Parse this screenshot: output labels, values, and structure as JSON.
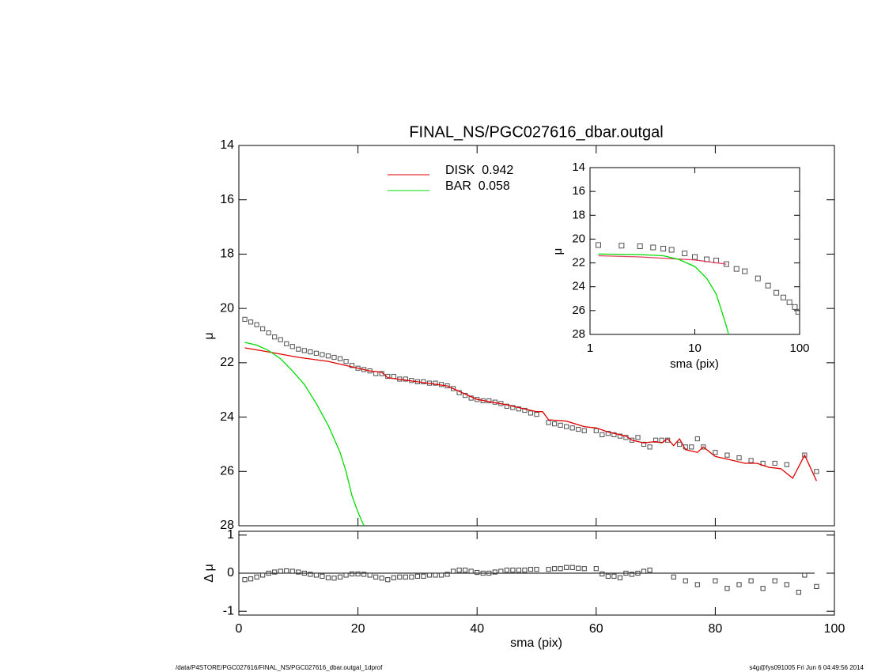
{
  "chart_data": [
    {
      "type": "line",
      "title": "FINAL_NS/PGC027616_dbar.outgal",
      "ylabel": "μ",
      "xlim": [
        0,
        100
      ],
      "xticks": [
        0,
        20,
        40,
        60,
        80,
        100
      ],
      "ylim": [
        14,
        28
      ],
      "y_reversed": true,
      "yticks": [
        14,
        16,
        18,
        20,
        22,
        24,
        26,
        28
      ],
      "legend": "top-center",
      "series": [
        {
          "color": "#505050",
          "style": "square",
          "x": [
            1,
            2,
            3,
            4,
            5,
            6,
            7,
            8,
            9,
            10,
            11,
            12,
            13,
            14,
            15,
            16,
            17,
            18,
            19,
            20,
            21,
            22,
            23,
            24,
            25,
            26,
            27,
            28,
            29,
            30,
            31,
            32,
            33,
            34,
            35,
            36,
            37,
            38,
            39,
            40,
            41,
            42,
            43,
            44,
            45,
            46,
            47,
            48,
            49,
            50,
            52,
            53,
            54,
            55,
            56,
            57,
            58,
            60,
            61,
            62,
            63,
            64,
            65,
            66,
            67,
            68,
            69,
            70,
            71,
            72,
            74,
            75,
            76,
            77,
            78,
            80,
            82,
            84,
            86,
            88,
            90,
            92,
            95,
            97
          ],
          "values": [
            20.4,
            20.5,
            20.6,
            20.75,
            20.9,
            21.05,
            21.15,
            21.3,
            21.4,
            21.5,
            21.55,
            21.6,
            21.65,
            21.7,
            21.75,
            21.8,
            21.85,
            21.95,
            22.1,
            22.2,
            22.25,
            22.3,
            22.4,
            22.4,
            22.5,
            22.5,
            22.6,
            22.6,
            22.65,
            22.7,
            22.7,
            22.75,
            22.75,
            22.8,
            22.85,
            22.95,
            23.1,
            23.2,
            23.3,
            23.35,
            23.4,
            23.4,
            23.45,
            23.5,
            23.6,
            23.65,
            23.7,
            23.75,
            23.85,
            23.9,
            24.2,
            24.25,
            24.3,
            24.35,
            24.4,
            24.45,
            24.5,
            24.5,
            24.65,
            24.6,
            24.65,
            24.7,
            24.75,
            24.85,
            24.75,
            25.0,
            25.1,
            24.85,
            24.85,
            24.85,
            25.0,
            25.1,
            25.1,
            24.8,
            25.1,
            25.3,
            25.4,
            25.5,
            25.6,
            25.7,
            25.7,
            25.75,
            25.4,
            26.0
          ]
        },
        {
          "name": "DISK  0.942",
          "color": "#e00000",
          "style": "line",
          "x": [
            1,
            5,
            10,
            15,
            20,
            22,
            24,
            25,
            30,
            35,
            40,
            45,
            50,
            51,
            52,
            55,
            58,
            60,
            62,
            65,
            66,
            68,
            70,
            71,
            72,
            73,
            74,
            75,
            77,
            78,
            80,
            82,
            85,
            87,
            89,
            91,
            93,
            95,
            97
          ],
          "values": [
            21.45,
            21.6,
            21.8,
            21.95,
            22.2,
            22.3,
            22.35,
            22.55,
            22.7,
            22.85,
            23.35,
            23.55,
            23.8,
            23.8,
            24.1,
            24.15,
            24.35,
            24.4,
            24.55,
            24.7,
            24.85,
            24.95,
            24.9,
            24.95,
            24.8,
            25.05,
            24.8,
            25.2,
            25.3,
            25.1,
            25.45,
            25.55,
            25.7,
            25.7,
            25.85,
            25.9,
            26.25,
            25.4,
            26.35
          ]
        },
        {
          "name": "BAR  0.058",
          "color": "#00dd00",
          "style": "line",
          "x": [
            1,
            3,
            5,
            7,
            9,
            11,
            13,
            15,
            16,
            17,
            18,
            19,
            20,
            21
          ],
          "values": [
            21.25,
            21.35,
            21.55,
            21.85,
            22.3,
            22.8,
            23.5,
            24.3,
            24.8,
            25.3,
            26.0,
            26.9,
            27.5,
            28.0
          ]
        }
      ]
    },
    {
      "type": "scatter",
      "xlabel": "sma (pix)",
      "ylabel": "Δ μ",
      "xlim": [
        0,
        100
      ],
      "xticks": [
        0,
        20,
        40,
        60,
        80,
        100
      ],
      "ylim": [
        -1.1,
        1.1
      ],
      "yticks": [
        -1,
        0,
        1
      ],
      "reference_line": 0,
      "series": [
        {
          "color": "#404040",
          "style": "square",
          "x": [
            1,
            2,
            3,
            4,
            5,
            6,
            7,
            8,
            9,
            10,
            11,
            12,
            13,
            14,
            15,
            16,
            17,
            18,
            19,
            20,
            21,
            22,
            23,
            24,
            25,
            26,
            27,
            28,
            29,
            30,
            31,
            32,
            33,
            34,
            35,
            36,
            37,
            38,
            39,
            40,
            41,
            42,
            43,
            44,
            45,
            46,
            47,
            48,
            49,
            50,
            52,
            53,
            54,
            55,
            56,
            57,
            58,
            60,
            61,
            62,
            63,
            64,
            65,
            66,
            67,
            68,
            69,
            73,
            75,
            77,
            80,
            82,
            84,
            86,
            88,
            90,
            92,
            94,
            95,
            97
          ],
          "values": [
            -0.17,
            -0.15,
            -0.1,
            -0.05,
            0,
            0.03,
            0.05,
            0.06,
            0.05,
            0.03,
            0,
            -0.03,
            -0.05,
            -0.08,
            -0.12,
            -0.13,
            -0.1,
            -0.05,
            -0.02,
            -0.02,
            -0.03,
            -0.05,
            -0.1,
            -0.13,
            -0.17,
            -0.12,
            -0.1,
            -0.1,
            -0.1,
            -0.08,
            -0.08,
            -0.05,
            -0.05,
            -0.05,
            -0.03,
            0.05,
            0.08,
            0.08,
            0.05,
            0.02,
            0,
            0,
            0.03,
            0.05,
            0.08,
            0.08,
            0.08,
            0.08,
            0.1,
            0.1,
            0.1,
            0.12,
            0.12,
            0.15,
            0.15,
            0.13,
            0.12,
            0.12,
            -0.02,
            -0.08,
            -0.08,
            -0.12,
            0,
            -0.03,
            0,
            0.05,
            0.08,
            -0.1,
            -0.2,
            -0.3,
            -0.2,
            -0.4,
            -0.3,
            -0.2,
            -0.4,
            -0.2,
            -0.3,
            -0.5,
            -0.05,
            -0.35
          ]
        }
      ]
    },
    {
      "type": "line",
      "xlabel": "sma (pix)",
      "ylabel": "μ",
      "log_x": true,
      "xlim": [
        1,
        100
      ],
      "xticks": [
        1,
        10,
        100
      ],
      "ylim": [
        14,
        28
      ],
      "y_reversed": true,
      "yticks": [
        14,
        16,
        18,
        20,
        22,
        24,
        26,
        28
      ],
      "series": [
        {
          "color": "#505050",
          "style": "square",
          "x": [
            1.2,
            2,
            3,
            4,
            5,
            6,
            8,
            10,
            13,
            16,
            20,
            25,
            30,
            40,
            50,
            60,
            70,
            80,
            90,
            97
          ],
          "values": [
            20.5,
            20.55,
            20.6,
            20.7,
            20.8,
            20.9,
            21.2,
            21.5,
            21.7,
            21.8,
            22.1,
            22.5,
            22.7,
            23.3,
            23.9,
            24.5,
            24.9,
            25.3,
            25.7,
            26.1
          ]
        },
        {
          "color": "#e04060",
          "style": "line",
          "x": [
            1.2,
            3,
            10,
            20
          ],
          "values": [
            21.4,
            21.5,
            21.75,
            22.1
          ]
        },
        {
          "color": "#00dd00",
          "style": "line",
          "x": [
            1.2,
            3,
            5,
            7,
            10,
            13,
            16,
            18,
            20,
            21
          ],
          "values": [
            21.25,
            21.3,
            21.4,
            21.7,
            22.3,
            23.3,
            24.6,
            26.0,
            27.3,
            28.0
          ]
        }
      ]
    }
  ],
  "footer": {
    "left": "/data/P4STORE/PGC027616/FINAL_NS/PGC027616_dbar.outgal_1dprof",
    "right": "s4g@fys091005  Fri Jun  6 04:49:56 2014"
  }
}
